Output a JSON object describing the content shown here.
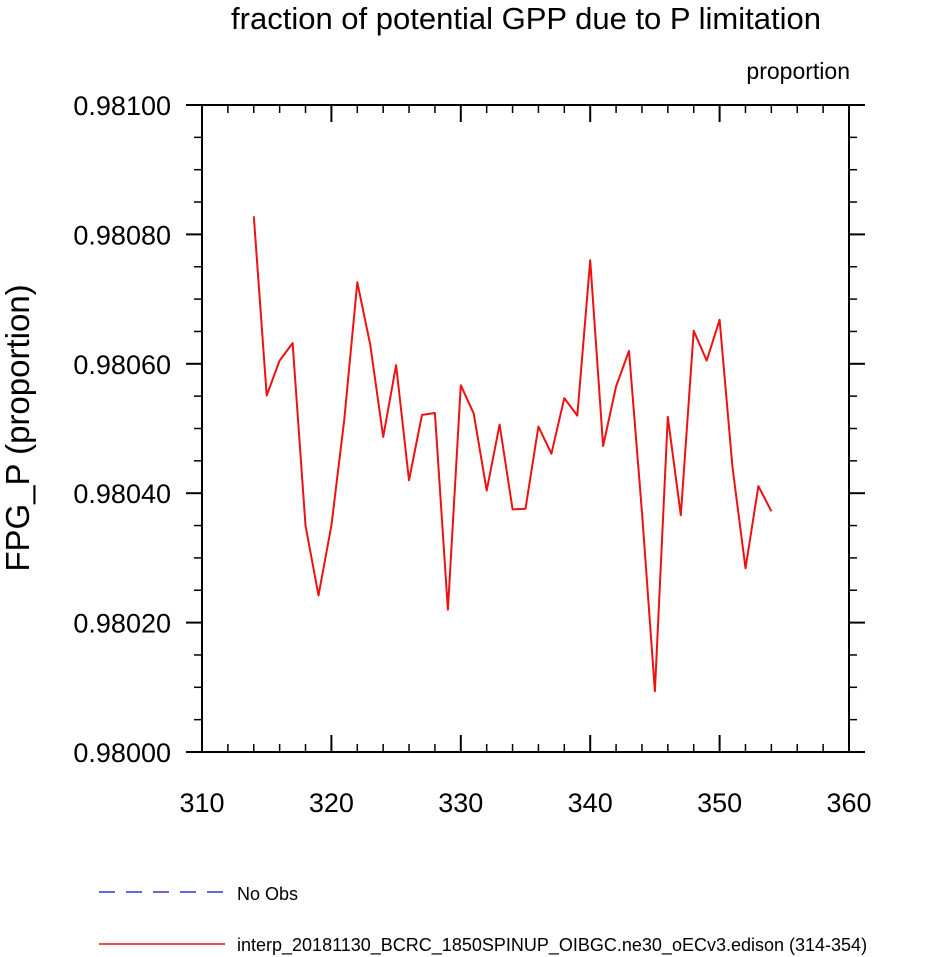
{
  "chart_data": {
    "type": "line",
    "title": "fraction of potential GPP due to P limitation",
    "units_label": "proportion",
    "xlabel": "",
    "ylabel": "FPG_P  (proportion)",
    "xlim": [
      310,
      360
    ],
    "ylim": [
      0.98,
      0.981
    ],
    "x_major_ticks": [
      310,
      320,
      330,
      340,
      350,
      360
    ],
    "x_tick_labels": [
      "310",
      "320",
      "330",
      "340",
      "350",
      "360"
    ],
    "y_major_ticks": [
      0.98,
      0.9802,
      0.9804,
      0.9806,
      0.9808,
      0.981
    ],
    "y_tick_labels": [
      "0.98000",
      "0.98020",
      "0.98040",
      "0.98060",
      "0.98080",
      "0.98100"
    ],
    "legend_position": "bottom-left",
    "series": [
      {
        "name": "No Obs",
        "color": "#3333cc",
        "dash": true,
        "x": [],
        "y": []
      },
      {
        "name": "interp_20181130_BCRC_1850SPINUP_OIBGC.ne30_oECv3.edison (314-354)",
        "color": "#ee1111",
        "dash": false,
        "x": [
          314,
          315,
          316,
          317,
          318,
          319,
          320,
          321,
          322,
          323,
          324,
          325,
          326,
          327,
          328,
          329,
          330,
          331,
          332,
          333,
          334,
          335,
          336,
          337,
          338,
          339,
          340,
          341,
          342,
          343,
          344,
          345,
          346,
          347,
          348,
          349,
          350,
          351,
          352,
          353,
          354
        ],
        "y": [
          0.980828,
          0.980551,
          0.980605,
          0.980632,
          0.98035,
          0.980242,
          0.98035,
          0.980514,
          0.980726,
          0.98063,
          0.980487,
          0.980598,
          0.98042,
          0.980521,
          0.980524,
          0.98022,
          0.980567,
          0.980523,
          0.980404,
          0.980506,
          0.980375,
          0.980376,
          0.980503,
          0.980461,
          0.980547,
          0.98052,
          0.98076,
          0.980473,
          0.980565,
          0.98062,
          0.98037,
          0.980094,
          0.980518,
          0.980366,
          0.980651,
          0.980605,
          0.980668,
          0.98044,
          0.980284,
          0.980411,
          0.980372
        ]
      }
    ]
  }
}
